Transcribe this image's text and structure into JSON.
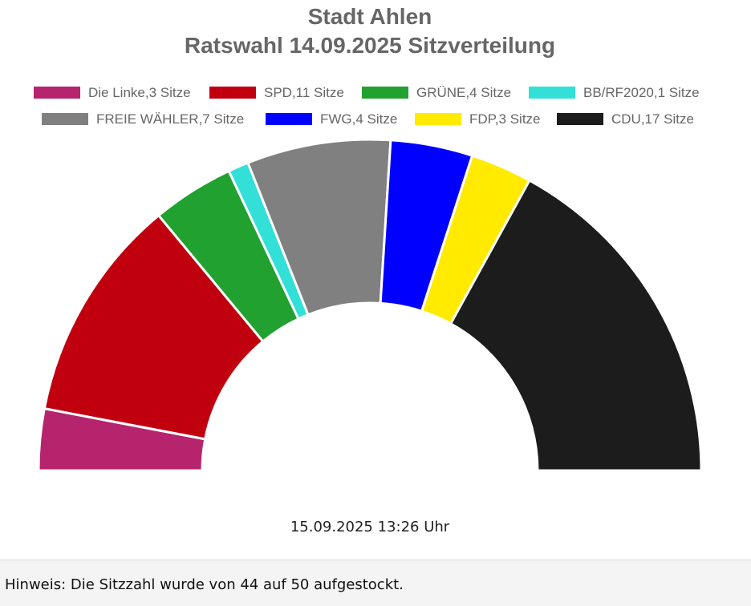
{
  "header": {
    "title": "Stadt Ahlen",
    "subtitle": "Ratswahl 14.09.2025 Sitzverteilung"
  },
  "chart_data": {
    "type": "pie",
    "variant": "semicircle-parliament",
    "title": "Stadt Ahlen",
    "subtitle": "Ratswahl 14.09.2025 Sitzverteilung",
    "legend_position": "top",
    "unit": "Sitze",
    "total_seats": 50,
    "series": [
      {
        "name": "Die Linke",
        "value": 3,
        "label": "Die Linke,3 Sitze",
        "color": "#b5246c"
      },
      {
        "name": "SPD",
        "value": 11,
        "label": "SPD,11 Sitze",
        "color": "#c0000f"
      },
      {
        "name": "GRÜNE",
        "value": 4,
        "label": "GRÜNE,4 Sitze",
        "color": "#21a130"
      },
      {
        "name": "BB/RF2020",
        "value": 1,
        "label": "BB/RF2020,1 Sitze",
        "color": "#32e0d8"
      },
      {
        "name": "FREIE WÄHLER",
        "value": 7,
        "label": "FREIE WÄHLER,7 Sitze",
        "color": "#808080"
      },
      {
        "name": "FWG",
        "value": 4,
        "label": "FWG,4 Sitze",
        "color": "#0000ff"
      },
      {
        "name": "FDP",
        "value": 3,
        "label": "FDP,3 Sitze",
        "color": "#ffea00"
      },
      {
        "name": "CDU",
        "value": 17,
        "label": "CDU,17 Sitze",
        "color": "#1c1c1c"
      }
    ]
  },
  "timestamp": "15.09.2025 13:26 Uhr",
  "footer": {
    "note": "Hinweis: Die Sitzzahl wurde von 44 auf 50 aufgestockt."
  }
}
